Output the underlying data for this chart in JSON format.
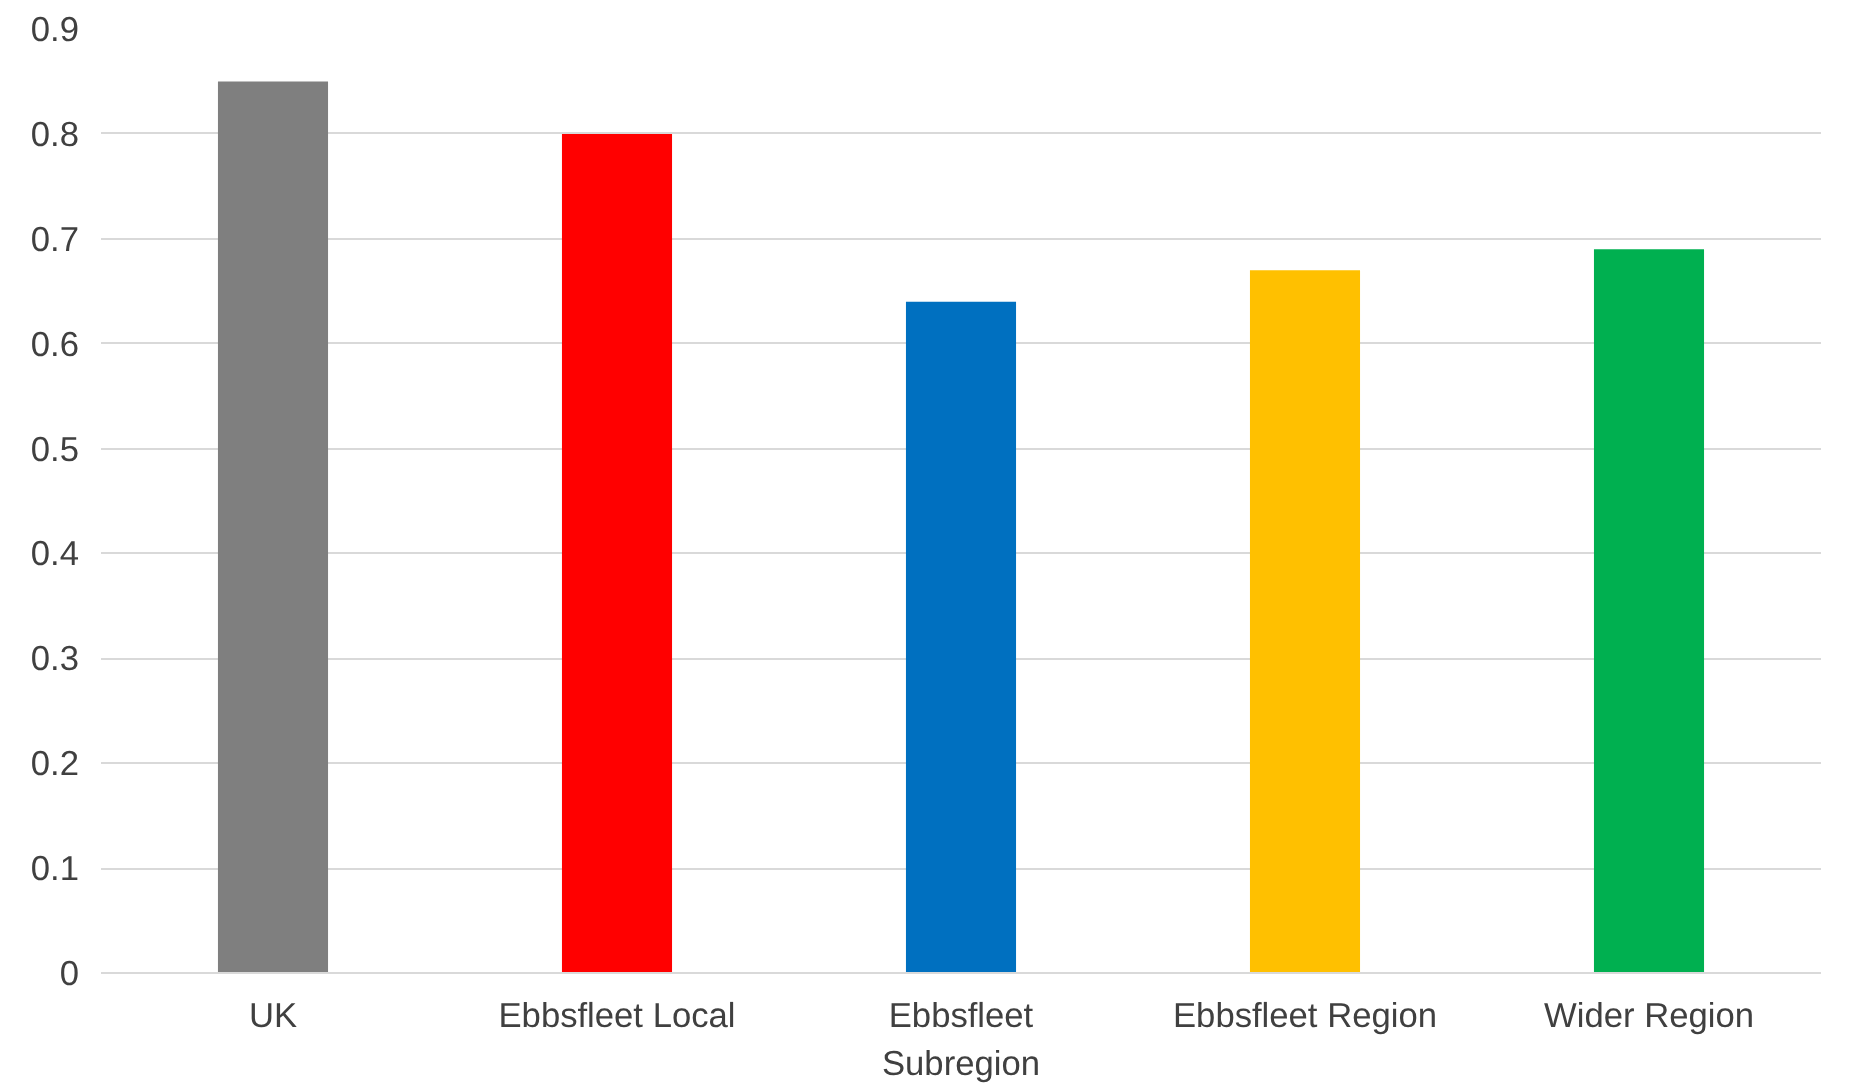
{
  "chart_data": {
    "type": "bar",
    "categories": [
      "UK",
      "Ebbsfleet Local",
      "Ebbsfleet Subregion",
      "Ebbsfleet Region",
      "Wider Region"
    ],
    "values": [
      0.85,
      0.8,
      0.64,
      0.67,
      0.69
    ],
    "colors": [
      "#7f7f7f",
      "#ff0000",
      "#0070c0",
      "#ffc000",
      "#00b050"
    ],
    "ylim": [
      0,
      0.9
    ],
    "yticks": [
      0,
      0.1,
      0.2,
      0.3,
      0.4,
      0.5,
      0.6,
      0.7,
      0.8,
      0.9
    ],
    "grid": "y"
  }
}
